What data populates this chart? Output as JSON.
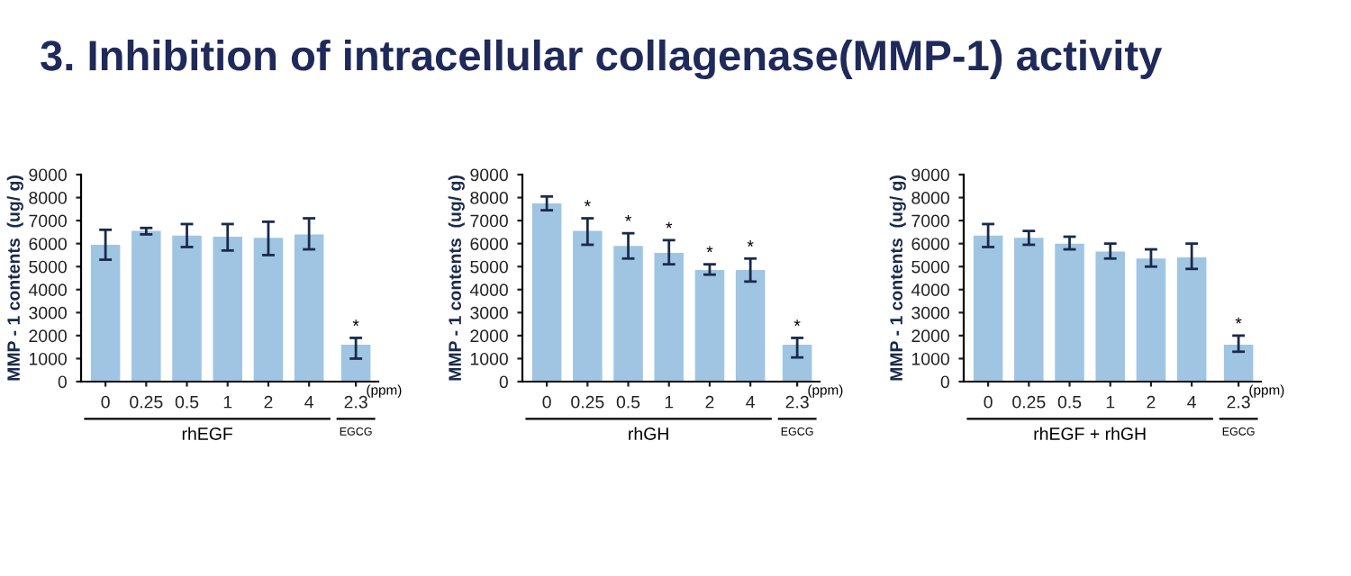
{
  "chart_data": [
    {
      "type": "bar",
      "title": "3. Inhibition of intracellular collagenase(MMP-1) activity",
      "ylabel": "MMP - 1 contents  (ug/ g)",
      "categories": [
        "0",
        "0.25",
        "0.5",
        "1",
        "2",
        "4",
        "2.3"
      ],
      "series": [
        {
          "color": "#9fc5e3",
          "values": [
            5950,
            6550,
            6350,
            6300,
            6250,
            6400,
            1600
          ],
          "errors": [
            [
              5300,
              6600
            ],
            [
              6400,
              6680
            ],
            [
              5850,
              6850
            ],
            [
              5700,
              6850
            ],
            [
              5500,
              6950
            ],
            [
              5750,
              7100
            ],
            [
              1000,
              1900
            ]
          ]
        }
      ],
      "ylim": [
        0,
        9000
      ],
      "yticks": [
        0,
        1000,
        2000,
        3000,
        4000,
        5000,
        6000,
        7000,
        8000,
        9000
      ],
      "grid": false,
      "legend": false,
      "annotations": [
        {
          "text": "*",
          "x": "2.3",
          "y": 1900
        },
        "rhEGF",
        "EGCG",
        "(ppm)"
      ]
    },
    {
      "type": "bar",
      "ylabel": "MMP - 1 contents  (ug/ g)",
      "categories": [
        "0",
        "0.25",
        "0.5",
        "1",
        "2",
        "4",
        "2.3"
      ],
      "series": [
        {
          "color": "#9fc5e3",
          "values": [
            7750,
            6550,
            5900,
            5600,
            4850,
            4850,
            1600
          ],
          "errors": [
            [
              7450,
              8050
            ],
            [
              5950,
              7100
            ],
            [
              5350,
              6450
            ],
            [
              5100,
              6150
            ],
            [
              4650,
              5100
            ],
            [
              4350,
              5350
            ],
            [
              1050,
              1900
            ]
          ]
        }
      ],
      "ylim": [
        0,
        9000
      ],
      "yticks": [
        0,
        1000,
        2000,
        3000,
        4000,
        5000,
        6000,
        7000,
        8000,
        9000
      ],
      "grid": false,
      "legend": false,
      "annotations": [
        {
          "text": "*",
          "x": "0.25",
          "y": 7100
        },
        {
          "text": "*",
          "x": "0.5",
          "y": 6450
        },
        {
          "text": "*",
          "x": "1",
          "y": 6150
        },
        {
          "text": "*",
          "x": "2",
          "y": 5100
        },
        {
          "text": "*",
          "x": "4",
          "y": 5350
        },
        {
          "text": "*",
          "x": "2.3",
          "y": 1900
        },
        "rhGH",
        "EGCG",
        "(ppm)"
      ]
    },
    {
      "type": "bar",
      "ylabel": "MMP - 1 contents  (ug/ g)",
      "categories": [
        "0",
        "0.25",
        "0.5",
        "1",
        "2",
        "4",
        "2.3"
      ],
      "series": [
        {
          "color": "#9fc5e3",
          "values": [
            6350,
            6250,
            6000,
            5650,
            5350,
            5400,
            1600
          ],
          "errors": [
            [
              5850,
              6850
            ],
            [
              5950,
              6550
            ],
            [
              5750,
              6300
            ],
            [
              5350,
              6000
            ],
            [
              5000,
              5750
            ],
            [
              4900,
              6000
            ],
            [
              1300,
              2000
            ]
          ]
        }
      ],
      "ylim": [
        0,
        9000
      ],
      "yticks": [
        0,
        1000,
        2000,
        3000,
        4000,
        5000,
        6000,
        7000,
        8000,
        9000
      ],
      "grid": false,
      "legend": false,
      "annotations": [
        {
          "text": "*",
          "x": "2.3",
          "y": 2000
        },
        "rhEGF + rhGH",
        "EGCG",
        "(ppm)"
      ]
    }
  ]
}
